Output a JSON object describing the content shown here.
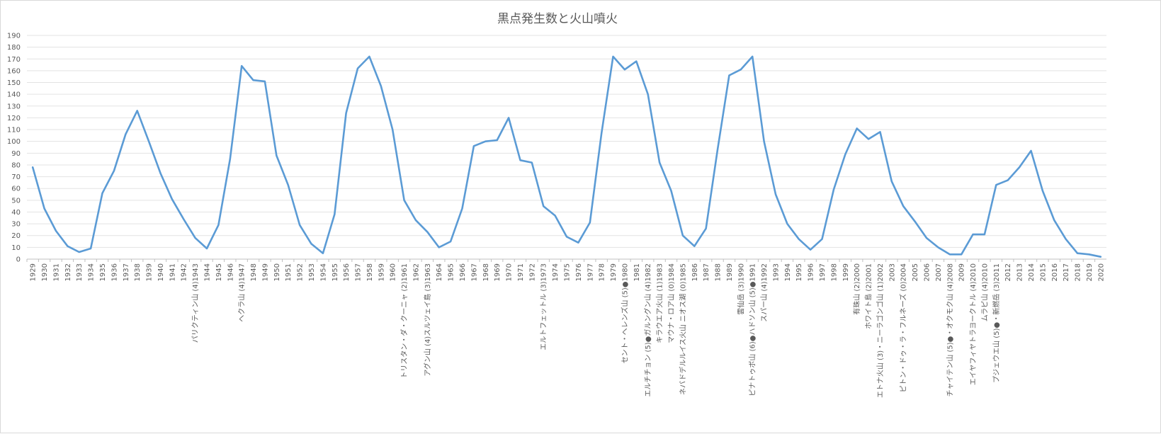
{
  "chart_data": {
    "type": "line",
    "title": "黒点発生数と火山噴火",
    "xlabel": "",
    "ylabel": "",
    "ylim": [
      0,
      190
    ],
    "y_ticks": [
      0,
      10,
      20,
      30,
      40,
      50,
      60,
      70,
      80,
      90,
      100,
      110,
      120,
      130,
      140,
      150,
      160,
      170,
      180,
      190
    ],
    "grid": true,
    "legend": "none",
    "line_color": "#5b9bd5",
    "categories": [
      "1929",
      "1930",
      "1931",
      "1932",
      "1933",
      "1934",
      "1935",
      "1936",
      "1937",
      "1938",
      "1939",
      "1940",
      "1941",
      "1942",
      "パリクティン山 (4)1943",
      "1944",
      "1945",
      "1946",
      "ヘクラ山 (4)1947",
      "1948",
      "1949",
      "1950",
      "1951",
      "1952",
      "1953",
      "1954",
      "1955",
      "1956",
      "1957",
      "1958",
      "1959",
      "1960",
      "トリスタン・ダ・クーニャ (2)1961",
      "1962",
      "アグン山 (4)スルツェイ島 (3)1963",
      "1964",
      "1965",
      "1966",
      "1967",
      "1968",
      "1969",
      "1970",
      "1971",
      "1972",
      "エルトフェットル (3)1973",
      "1974",
      "1975",
      "1976",
      "1977",
      "1978",
      "1979",
      "セント・ヘレンズ山 (5)●1980",
      "1981",
      "エルチチョン (5)●ガルングン山 (4)1982",
      "キラウエア火山 (1)1983",
      "マウナ・ロア山 (0)1984",
      "ネバドデルルイス火山 ニオス湖 (0)1985",
      "1986",
      "1987",
      "1988",
      "1989",
      "雲仙岳 (3)1990",
      "ピナトゥボ山 (6)●ハドソン山 (5)●1991",
      "スパー山 (4)1992",
      "1993",
      "1994",
      "1995",
      "1996",
      "1997",
      "1998",
      "1999",
      "有珠山 (2)2000",
      "ホワイト島 (2)2001",
      "エトナ火山 (3)・ニーラゴンゴ山 (1)2002",
      "2003",
      "ピトン・ドゥ・ラ・フルネーズ (0)2004",
      "2005",
      "2006",
      "2007",
      "チャイテン山 (5)●・オクモク山 (4)2008",
      "2009",
      "エイヤフィヤトラヨークトル (4)2010",
      "ムラピ山 (4)2010",
      "プジェウエ山 (5)●・新燃岳 (3)2011",
      "2012",
      "2013",
      "2014",
      "2015",
      "2016",
      "2017",
      "2018",
      "2019",
      "2020"
    ],
    "values": [
      78,
      43,
      24,
      11,
      6,
      9,
      56,
      75,
      106,
      126,
      100,
      73,
      51,
      34,
      18,
      9,
      29,
      85,
      164,
      152,
      151,
      88,
      63,
      29,
      13,
      5,
      38,
      124,
      162,
      172,
      147,
      110,
      50,
      33,
      23,
      10,
      15,
      43,
      96,
      100,
      101,
      120,
      84,
      82,
      45,
      37,
      19,
      14,
      31,
      107,
      172,
      161,
      168,
      140,
      82,
      58,
      20,
      11,
      26,
      93,
      156,
      161,
      172,
      100,
      55,
      30,
      17,
      8,
      17,
      59,
      89,
      111,
      102,
      108,
      66,
      45,
      32,
      18,
      10,
      4,
      4,
      21,
      21,
      63,
      67,
      78,
      92,
      58,
      33,
      17,
      5,
      4,
      2
    ]
  }
}
